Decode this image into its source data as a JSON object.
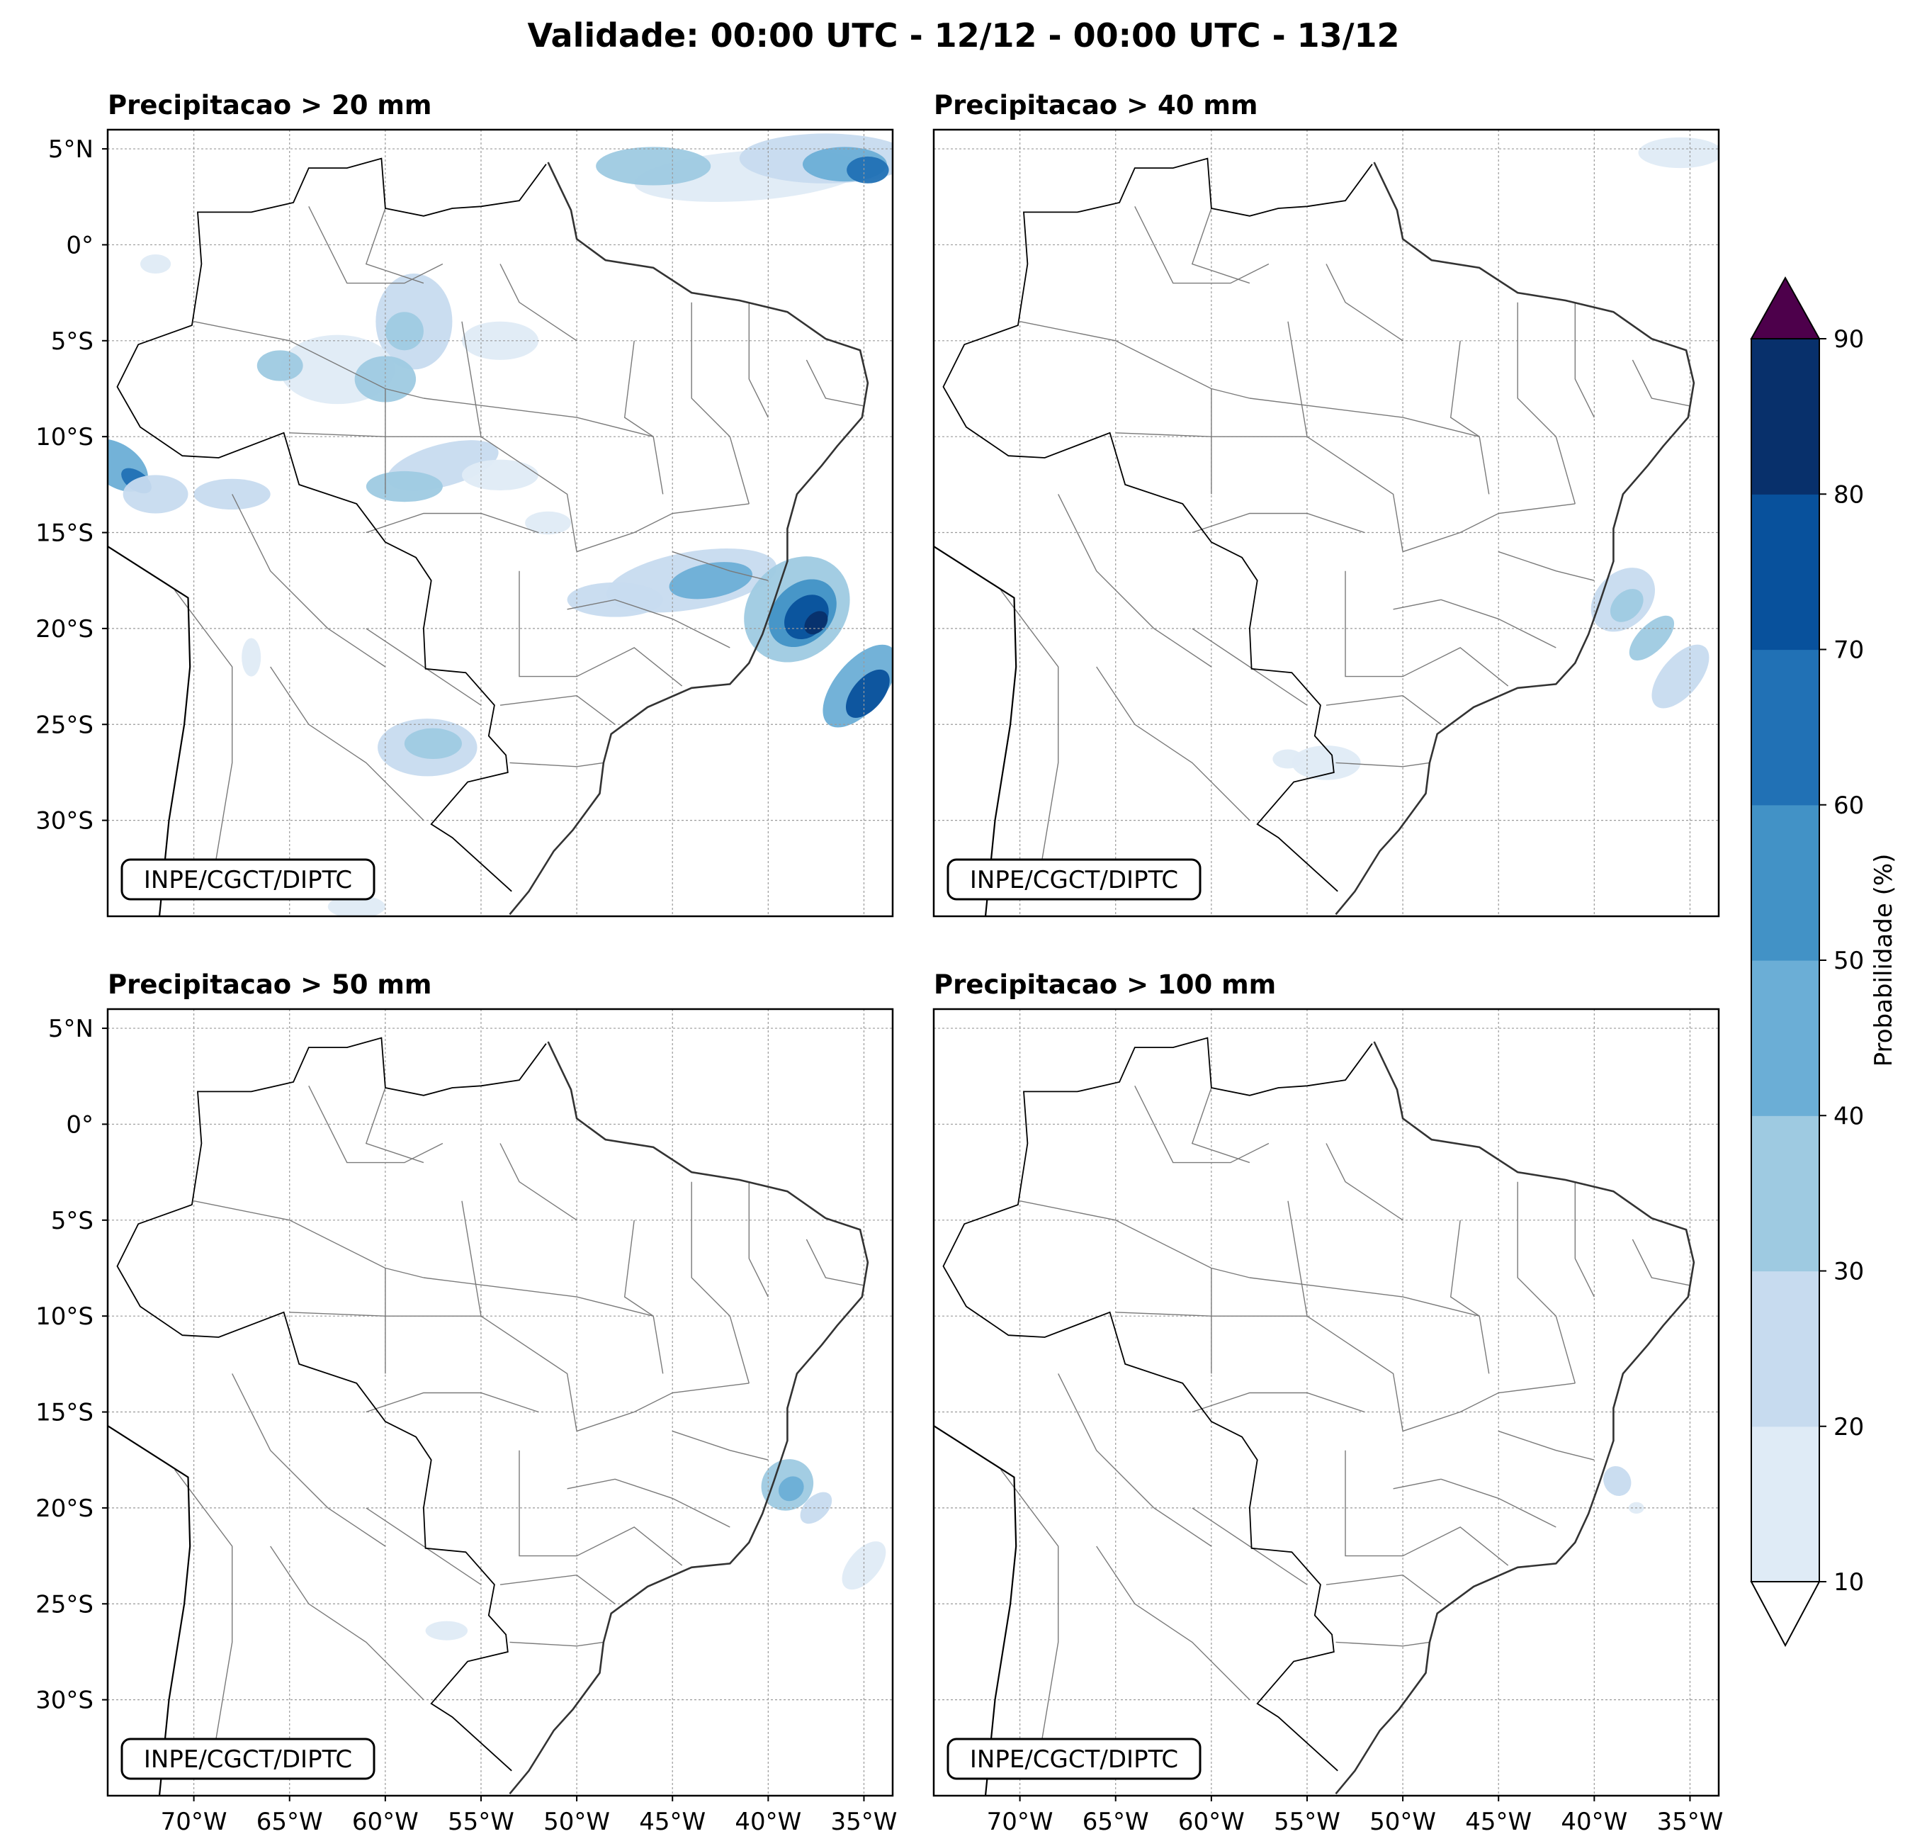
{
  "figure_title": "Validade: 00:00 UTC - 12/12 - 00:00 UTC - 13/12",
  "panels": [
    {
      "title": "Precipitacao > 20 mm",
      "credit": "INPE/CGCT/DIPTC"
    },
    {
      "title": "Precipitacao > 40 mm",
      "credit": "INPE/CGCT/DIPTC"
    },
    {
      "title": "Precipitacao > 50 mm",
      "credit": "INPE/CGCT/DIPTC"
    },
    {
      "title": "Precipitacao > 100 mm",
      "credit": "INPE/CGCT/DIPTC"
    }
  ],
  "lat_ticks": [
    "5°N",
    "0°",
    "5°S",
    "10°S",
    "15°S",
    "20°S",
    "25°S",
    "30°S"
  ],
  "lon_ticks": [
    "70°W",
    "65°W",
    "60°W",
    "55°W",
    "50°W",
    "45°W",
    "40°W",
    "35°W"
  ],
  "colorbar": {
    "label": "Probabilidade (%)",
    "ticks": [
      "10",
      "20",
      "30",
      "40",
      "50",
      "60",
      "70",
      "80",
      "90"
    ],
    "colors": [
      "#dfebf6",
      "#c7dbef",
      "#9ecae1",
      "#6baed6",
      "#4292c6",
      "#2171b5",
      "#08519c",
      "#08306b"
    ],
    "over_color": "#4d004b",
    "under_color": "#ffffff"
  },
  "map_extent": {
    "lon_min": -74.5,
    "lon_max": -33.5,
    "lat_min": -35,
    "lat_max": 6
  }
}
